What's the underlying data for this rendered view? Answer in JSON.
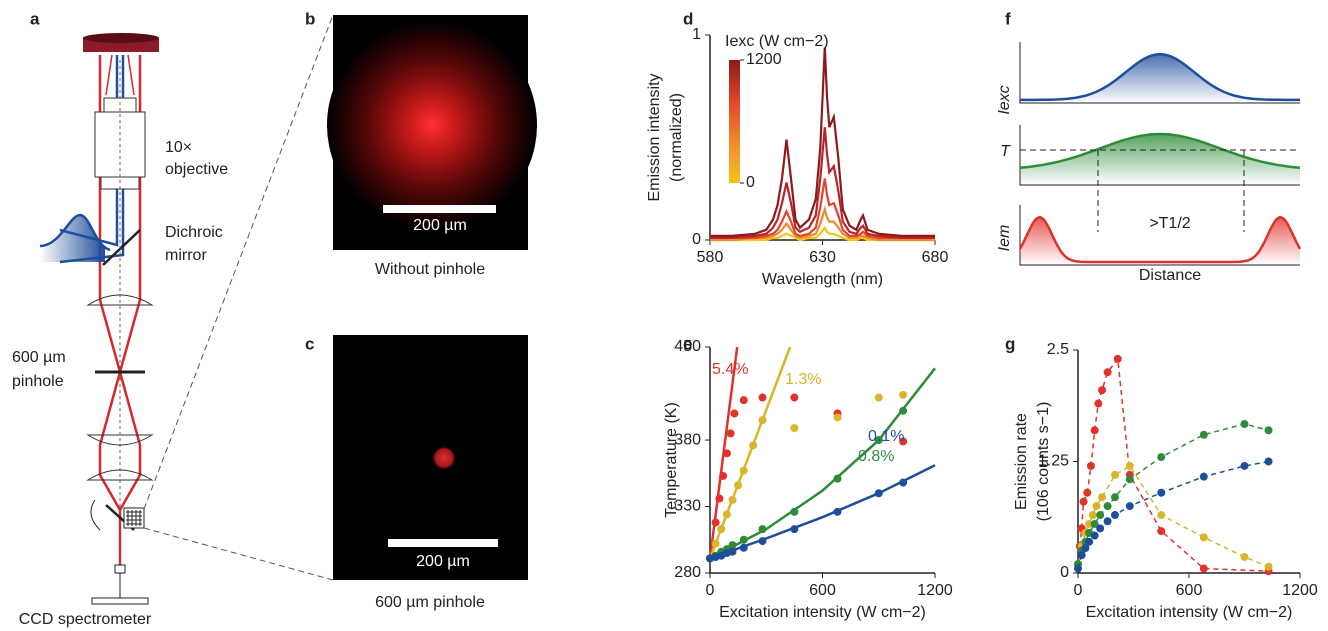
{
  "panels": {
    "labels": [
      "a",
      "b",
      "c",
      "d",
      "e",
      "f",
      "g"
    ]
  },
  "diagram": {
    "objective": [
      "10×",
      "objective"
    ],
    "mirror": [
      "Dichroic",
      "mirror"
    ],
    "pinhole": [
      "600 µm",
      "pinhole"
    ],
    "detector": "CCD spectrometer"
  },
  "images": [
    {
      "scale_bar": "200 µm",
      "caption": "Without pinhole"
    },
    {
      "scale_bar": "200 µm",
      "caption": "600 µm pinhole"
    }
  ],
  "schematic": {
    "labels": [
      "Iexc",
      "T",
      "Iem"
    ],
    "threshold_label": ">T1/2",
    "xlabel": "Distance"
  },
  "chart_data": [
    {
      "type": "line",
      "xlabel": "Wavelength (nm)",
      "ylabel": [
        "Emission intensity",
        "(normalized)"
      ],
      "x": [
        580,
        590,
        600,
        605,
        608,
        610,
        612,
        614,
        616,
        618,
        620,
        624,
        627,
        629,
        631,
        632,
        633,
        635,
        637,
        639,
        642,
        645,
        647,
        648,
        650,
        655,
        665,
        680
      ],
      "series": [
        {
          "color": "#f5c518",
          "values": [
            0,
            0,
            0,
            0,
            0.01,
            0.01,
            0.02,
            0.03,
            0.02,
            0.01,
            0,
            0.01,
            0.01,
            0.03,
            0.06,
            0.04,
            0.03,
            0.03,
            0.02,
            0.01,
            0,
            0,
            0.01,
            0.01,
            0,
            0,
            0,
            0
          ]
        },
        {
          "color": "#f08a30",
          "values": [
            0,
            0,
            0.01,
            0.01,
            0.02,
            0.03,
            0.05,
            0.08,
            0.05,
            0.02,
            0.01,
            0.02,
            0.03,
            0.08,
            0.15,
            0.11,
            0.09,
            0.09,
            0.06,
            0.03,
            0.01,
            0.01,
            0.02,
            0.02,
            0.01,
            0,
            0,
            0
          ]
        },
        {
          "color": "#e0452a",
          "values": [
            0.01,
            0.01,
            0.01,
            0.02,
            0.03,
            0.05,
            0.09,
            0.14,
            0.09,
            0.03,
            0.02,
            0.03,
            0.06,
            0.16,
            0.3,
            0.22,
            0.17,
            0.18,
            0.12,
            0.05,
            0.02,
            0.02,
            0.03,
            0.04,
            0.02,
            0.01,
            0.01,
            0.01
          ]
        },
        {
          "color": "#b8232a",
          "values": [
            0.01,
            0.01,
            0.02,
            0.03,
            0.06,
            0.1,
            0.18,
            0.28,
            0.18,
            0.06,
            0.04,
            0.06,
            0.12,
            0.3,
            0.55,
            0.42,
            0.33,
            0.36,
            0.24,
            0.09,
            0.04,
            0.03,
            0.06,
            0.07,
            0.03,
            0.02,
            0.01,
            0.01
          ]
        },
        {
          "color": "#8b1a1a",
          "values": [
            0.02,
            0.02,
            0.03,
            0.05,
            0.1,
            0.17,
            0.3,
            0.49,
            0.3,
            0.1,
            0.06,
            0.1,
            0.2,
            0.45,
            0.94,
            0.7,
            0.55,
            0.6,
            0.4,
            0.15,
            0.07,
            0.05,
            0.1,
            0.12,
            0.05,
            0.03,
            0.02,
            0.02
          ]
        }
      ],
      "xlim": [
        580,
        680
      ],
      "xticks": [
        580,
        630,
        680
      ],
      "ylim": [
        0,
        1
      ],
      "yticks": [
        0,
        1
      ],
      "colorbar": {
        "title": "Iexc (W cm−2)",
        "ticks": [
          0,
          1200
        ],
        "colors": [
          "#f5c518",
          "#f08a30",
          "#e0452a",
          "#8b1a1a"
        ]
      }
    },
    {
      "type": "scatter",
      "xlabel": "Excitation intensity (W cm−2)",
      "ylabel": [
        "Temperature (K)"
      ],
      "series": [
        {
          "name": "5.4%",
          "color": "#e0312b",
          "x": [
            0,
            30,
            50,
            70,
            90,
            110,
            130,
            180,
            280,
            450,
            680,
            1030
          ],
          "values": [
            291,
            318,
            336,
            353,
            370,
            385,
            400,
            410,
            412,
            412,
            400,
            379
          ],
          "fit_x": [
            0,
            145
          ],
          "fit_values": [
            291,
            450
          ]
        },
        {
          "name": "1.3%",
          "color": "#d9b52a",
          "x": [
            0,
            30,
            60,
            90,
            120,
            150,
            180,
            230,
            280,
            450,
            680,
            900,
            1030
          ],
          "values": [
            291,
            302,
            313,
            324,
            335,
            346,
            357,
            376,
            395,
            389,
            397,
            412,
            414
          ],
          "fit_x": [
            0,
            427
          ],
          "fit_values": [
            291,
            450
          ]
        },
        {
          "name": "0.8%",
          "color": "#2e8b3a",
          "x": [
            0,
            30,
            60,
            90,
            120,
            180,
            280,
            450,
            680,
            900,
            1030
          ],
          "values": [
            291,
            293,
            296,
            298,
            301,
            305,
            313,
            326,
            351,
            380,
            402
          ],
          "fit_x": [
            0,
            300,
            600,
            900,
            1200
          ],
          "fit_values": [
            291,
            313,
            342,
            380,
            434
          ]
        },
        {
          "name": "0.1%",
          "color": "#1f4e9c",
          "x": [
            0,
            30,
            60,
            90,
            120,
            180,
            280,
            450,
            680,
            900,
            1030
          ],
          "values": [
            291,
            292,
            293,
            295,
            296,
            299,
            304,
            313,
            326,
            340,
            348
          ],
          "fit_x": [
            0,
            300,
            600,
            900,
            1200
          ],
          "fit_values": [
            291,
            306,
            322,
            340,
            361
          ]
        }
      ],
      "xlim": [
        0,
        1200
      ],
      "xticks": [
        0,
        600,
        1200
      ],
      "ylim": [
        280,
        450
      ],
      "yticks": [
        280,
        330,
        380,
        450
      ]
    },
    {
      "type": "line",
      "dashed": true,
      "markers": true,
      "xlabel": "Excitation intensity (W cm−2)",
      "ylabel": [
        "Emission rate",
        "(106 counts s−1)"
      ],
      "series": [
        {
          "color": "#e0312b",
          "x": [
            0,
            10,
            20,
            30,
            50,
            70,
            90,
            110,
            130,
            160,
            215,
            280,
            450,
            680,
            1030
          ],
          "values": [
            0.1,
            0.3,
            0.5,
            0.8,
            0.9,
            1.2,
            1.6,
            1.9,
            2.05,
            2.25,
            2.4,
            1.1,
            0.47,
            0.05,
            0.02
          ]
        },
        {
          "color": "#d9b52a",
          "x": [
            0,
            20,
            40,
            60,
            80,
            100,
            130,
            200,
            280,
            450,
            680,
            900,
            1030
          ],
          "values": [
            0.1,
            0.3,
            0.45,
            0.55,
            0.65,
            0.75,
            0.85,
            1.1,
            1.2,
            0.65,
            0.4,
            0.18,
            0.07
          ]
        },
        {
          "color": "#2e8b3a",
          "x": [
            0,
            20,
            40,
            60,
            90,
            120,
            160,
            200,
            280,
            450,
            680,
            900,
            1030
          ],
          "values": [
            0.1,
            0.25,
            0.35,
            0.45,
            0.55,
            0.65,
            0.75,
            0.85,
            1.05,
            1.3,
            1.55,
            1.67,
            1.6
          ]
        },
        {
          "color": "#1f4e9c",
          "x": [
            0,
            20,
            40,
            60,
            90,
            120,
            160,
            200,
            280,
            450,
            680,
            900,
            1030
          ],
          "values": [
            0.05,
            0.2,
            0.28,
            0.35,
            0.42,
            0.5,
            0.58,
            0.65,
            0.75,
            0.9,
            1.08,
            1.2,
            1.25
          ]
        }
      ],
      "xlim": [
        0,
        1200
      ],
      "xticks": [
        0,
        600,
        1200
      ],
      "ylim": [
        0,
        2.5
      ],
      "yticks": [
        0,
        1.25,
        2.5
      ]
    }
  ]
}
